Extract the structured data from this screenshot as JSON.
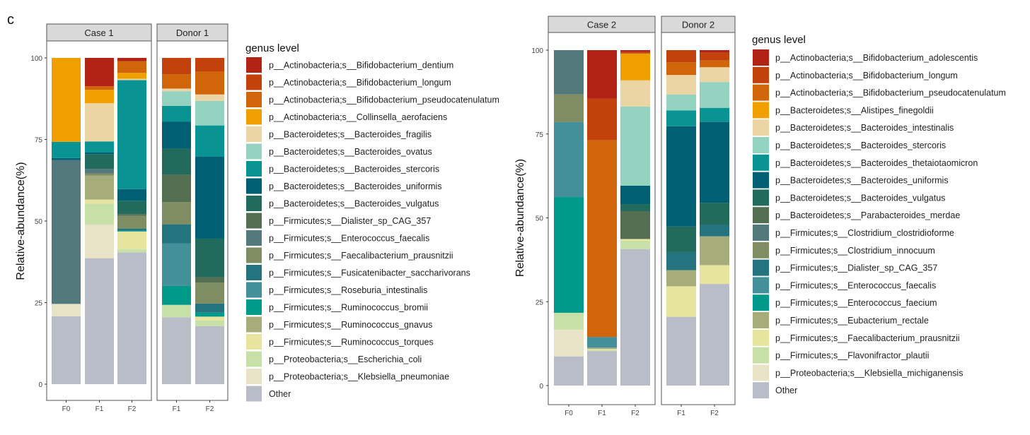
{
  "figure_label": "c",
  "chart_data": [
    {
      "type": "bar",
      "stacked": true,
      "ylabel": "Relative-abundance(%)",
      "ylim": [
        0,
        100
      ],
      "yticks": [
        "0",
        "25",
        "50",
        "75",
        "100"
      ],
      "legend_title": "genus level",
      "legend_position": "right",
      "legend": [
        {
          "label": "p__Actinobacteria;s__Bifidobacterium_dentium",
          "color": "#B22315"
        },
        {
          "label": "p__Actinobacteria;s__Bifidobacterium_longum",
          "color": "#C3410B"
        },
        {
          "label": "p__Actinobacteria;s__Bifidobacterium_pseudocatenulatum",
          "color": "#D0650A"
        },
        {
          "label": "p__Actinobacteria;s__Collinsella_aerofaciens",
          "color": "#EFA000"
        },
        {
          "label": "p__Bacteroidetes;s__Bacteroides_fragilis",
          "color": "#EBD5A5"
        },
        {
          "label": "p__Bacteroidetes;s__Bacteroides_ovatus",
          "color": "#94D3C0"
        },
        {
          "label": "p__Bacteroidetes;s__Bacteroides_stercoris",
          "color": "#0A9393"
        },
        {
          "label": "p__Bacteroidetes;s__Bacteroides_uniformis",
          "color": "#005F73"
        },
        {
          "label": "p__Bacteroidetes;s__Bacteroides_vulgatus",
          "color": "#226B5C"
        },
        {
          "label": "p__Firmicutes;s__Dialister_sp_CAG_357",
          "color": "#536E50"
        },
        {
          "label": "p__Firmicutes;s__Enterococcus_faecalis",
          "color": "#527A7C"
        },
        {
          "label": "p__Firmicutes;s__Faecalibacterium_prausnitzii",
          "color": "#7E8D62"
        },
        {
          "label": "p__Firmicutes;s__Fusicatenibacter_saccharivorans",
          "color": "#24737F"
        },
        {
          "label": "p__Firmicutes;s__Roseburia_intestinalis",
          "color": "#438F9A"
        },
        {
          "label": "p__Firmicutes;s__Ruminococcus_bromii",
          "color": "#009A8A"
        },
        {
          "label": "p__Firmicutes;s__Ruminococcus_gnavus",
          "color": "#A7AC7B"
        },
        {
          "label": "p__Firmicutes;s__Ruminococcus_torques",
          "color": "#E6E49E"
        },
        {
          "label": "p__Proteobacteria;s__Escherichia_coli",
          "color": "#C7E0A8"
        },
        {
          "label": "p__Proteobacteria;s__Klebsiella_pneumoniae",
          "color": "#E8E2C7"
        },
        {
          "label": "Other",
          "color": "#B9BDC8"
        }
      ],
      "facets": [
        {
          "title": "Case 1",
          "bars": [
            {
              "label": "F0",
              "values": [
                0,
                0,
                0,
                25.7,
                0,
                0,
                5.0,
                0.6,
                0,
                0,
                44.1,
                0,
                0,
                0,
                0,
                0,
                0,
                0,
                3.8,
                20.8
              ]
            },
            {
              "label": "F1",
              "values": [
                8.7,
                0,
                1.1,
                4.1,
                11.7,
                0,
                3.4,
                0.5,
                4.5,
                0,
                1.4,
                0.7,
                0,
                0,
                0,
                7.3,
                1.3,
                6.4,
                10.3,
                38.6
              ]
            },
            {
              "label": "F2",
              "values": [
                1.0,
                0,
                3.6,
                1.8,
                0.4,
                0,
                33.4,
                3.6,
                4.1,
                0.5,
                0,
                3.9,
                0.6,
                0,
                0.3,
                0,
                5.4,
                1.0,
                0,
                40.4
              ]
            }
          ]
        },
        {
          "title": "Donor 1",
          "bars": [
            {
              "label": "F1",
              "values": [
                0,
                5.0,
                4.4,
                0,
                0.8,
                4.5,
                4.8,
                8.3,
                8.0,
                8.4,
                0,
                6.8,
                5.9,
                13.0,
                5.8,
                0,
                0,
                3.8,
                0,
                20.5
              ]
            },
            {
              "label": "F2",
              "values": [
                0,
                4.2,
                7.0,
                0,
                2.0,
                7.5,
                9.6,
                25.1,
                11.8,
                1.7,
                0,
                6.4,
                2.8,
                0,
                1.2,
                0,
                1.2,
                1.7,
                0,
                17.8
              ]
            }
          ]
        }
      ]
    },
    {
      "type": "bar",
      "stacked": true,
      "ylabel": "Relative-abundance(%)",
      "ylim": [
        0,
        100
      ],
      "yticks": [
        "0",
        "25",
        "50",
        "75",
        "100"
      ],
      "legend_title": "genus level",
      "legend_position": "right",
      "legend": [
        {
          "label": "p__Actinobacteria;s__Bifidobacterium_adolescentis",
          "color": "#B22315"
        },
        {
          "label": "p__Actinobacteria;s__Bifidobacterium_longum",
          "color": "#C3410B"
        },
        {
          "label": "p__Actinobacteria;s__Bifidobacterium_pseudocatenulatum",
          "color": "#D0650A"
        },
        {
          "label": "p__Bacteroidetes;s__Alistipes_finegoldii",
          "color": "#EFA000"
        },
        {
          "label": "p__Bacteroidetes;s__Bacteroides_intestinalis",
          "color": "#EBD5A5"
        },
        {
          "label": "p__Bacteroidetes;s__Bacteroides_stercoris",
          "color": "#94D3C0"
        },
        {
          "label": "p__Bacteroidetes;s__Bacteroides_thetaiotaomicron",
          "color": "#0A9393"
        },
        {
          "label": "p__Bacteroidetes;s__Bacteroides_uniformis",
          "color": "#005F73"
        },
        {
          "label": "p__Bacteroidetes;s__Bacteroides_vulgatus",
          "color": "#226B5C"
        },
        {
          "label": "p__Bacteroidetes;s__Parabacteroides_merdae",
          "color": "#536E50"
        },
        {
          "label": "p__Firmicutes;s__Clostridium_clostridioforme",
          "color": "#527A7C"
        },
        {
          "label": "p__Firmicutes;s__Clostridium_innocuum",
          "color": "#7E8D62"
        },
        {
          "label": "p__Firmicutes;s__Dialister_sp_CAG_357",
          "color": "#24737F"
        },
        {
          "label": "p__Firmicutes;s__Enterococcus_faecalis",
          "color": "#438F9A"
        },
        {
          "label": "p__Firmicutes;s__Enterococcus_faecium",
          "color": "#009A8A"
        },
        {
          "label": "p__Firmicutes;s__Eubacterium_rectale",
          "color": "#A7AC7B"
        },
        {
          "label": "p__Firmicutes;s__Faecalibacterium_prausnitzii",
          "color": "#E6E49E"
        },
        {
          "label": "p__Firmicutes;s__Flavonifractor_plautii",
          "color": "#C7E0A8"
        },
        {
          "label": "p__Proteobacteria;s__Klebsiella_michiganensis",
          "color": "#E8E2C7"
        },
        {
          "label": "Other",
          "color": "#B9BDC8"
        }
      ],
      "facets": [
        {
          "title": "Case 2",
          "bars": [
            {
              "label": "F0",
              "values": [
                0,
                0,
                0,
                0,
                0,
                0,
                0,
                0,
                0,
                0,
                13.2,
                8.2,
                0,
                22.4,
                34.5,
                0,
                0,
                5.0,
                8.0,
                8.7
              ]
            },
            {
              "label": "F1",
              "values": [
                14.5,
                12.4,
                58.6,
                0,
                0,
                0,
                0,
                0,
                0,
                0,
                0,
                0,
                0,
                3.2,
                0,
                0.4,
                0.3,
                0.3,
                0,
                10.3
              ]
            },
            {
              "label": "F2",
              "values": [
                0.5,
                0.5,
                0,
                8.0,
                7.8,
                23.6,
                0,
                5.5,
                2.1,
                8.3,
                0,
                0,
                0,
                0,
                0,
                0,
                0.5,
                2.5,
                0,
                40.7
              ]
            }
          ]
        },
        {
          "title": "Donor 2",
          "bars": [
            {
              "label": "F1",
              "values": [
                0,
                3.6,
                3.8,
                0,
                5.8,
                4.8,
                4.7,
                29.9,
                7.6,
                0,
                0,
                0,
                5.4,
                0,
                0,
                4.8,
                9.1,
                0,
                0,
                20.5
              ]
            },
            {
              "label": "F2",
              "values": [
                0.8,
                2.3,
                2.0,
                0,
                4.4,
                7.7,
                4.2,
                24.1,
                6.5,
                0,
                0,
                0,
                3.5,
                0,
                0,
                8.6,
                5.6,
                0,
                0,
                30.3
              ]
            }
          ]
        }
      ]
    }
  ]
}
